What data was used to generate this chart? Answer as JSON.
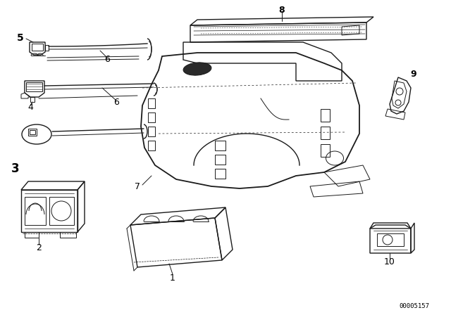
{
  "background_color": "#ffffff",
  "line_color": "#1a1a1a",
  "catalog_number": "00005157",
  "fig_width": 6.4,
  "fig_height": 4.48,
  "dpi": 100
}
